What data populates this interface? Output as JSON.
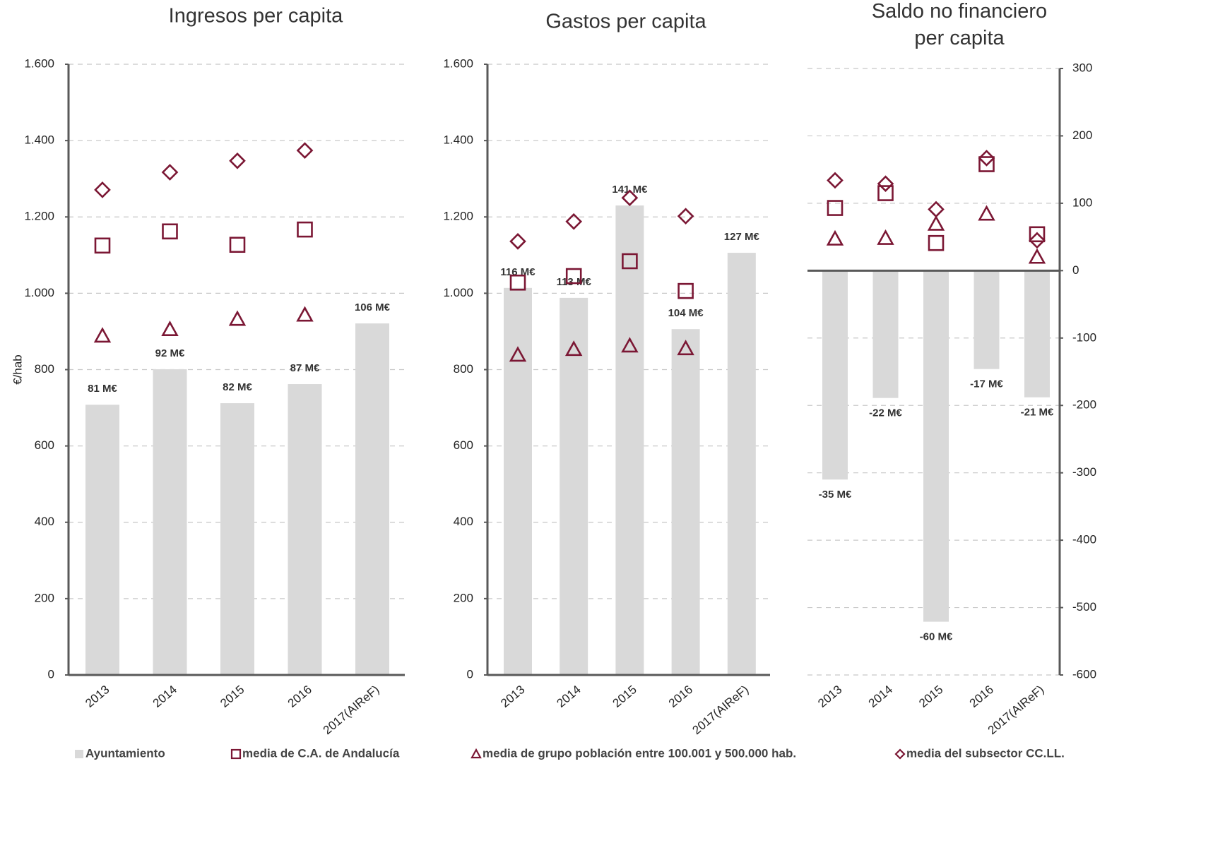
{
  "chart_data": [
    {
      "type": "bar",
      "title": "Ingresos per capita",
      "y_label": "€/hab",
      "yaxis_side": "left",
      "categories": [
        "2013",
        "2014",
        "2015",
        "2016",
        "2017(AIReF)"
      ],
      "ylim": [
        0,
        1600
      ],
      "yticks": [
        0,
        200,
        400,
        600,
        800,
        {
          "value": 1000,
          "label": "1.000"
        },
        {
          "value": 1200,
          "label": "1.200"
        },
        {
          "value": 1400,
          "label": "1.400"
        },
        {
          "value": 1600,
          "label": "1.600"
        }
      ],
      "grid": true,
      "bar_labels": [
        "81 M€",
        "92 M€",
        "82 M€",
        "87 M€",
        "106 M€"
      ],
      "series": [
        {
          "name": "Ayuntamiento",
          "kind": "bar",
          "color": "#d9d9d9",
          "values": [
            708,
            801,
            712,
            762,
            921
          ]
        },
        {
          "name": "media de C.A. de Andalucía",
          "kind": "square",
          "color": "#7b1734",
          "values": [
            1125,
            1162,
            1127,
            1167,
            null
          ]
        },
        {
          "name": "media de grupo población entre 100.001 y 500.000 hab.",
          "kind": "triangle",
          "color": "#7b1734",
          "values": [
            888,
            905,
            932,
            943,
            null
          ]
        },
        {
          "name": "media del subsector CC.LL.",
          "kind": "diamond",
          "color": "#7b1734",
          "values": [
            1271,
            1317,
            1347,
            1374,
            null
          ]
        }
      ]
    },
    {
      "type": "bar",
      "title": "Gastos per capita",
      "yaxis_side": "left",
      "categories": [
        "2013",
        "2014",
        "2015",
        "2016",
        "2017(AIReF)"
      ],
      "ylim": [
        0,
        1600
      ],
      "yticks": [
        0,
        200,
        400,
        600,
        800,
        {
          "value": 1000,
          "label": "1.000"
        },
        {
          "value": 1200,
          "label": "1.200"
        },
        {
          "value": 1400,
          "label": "1.400"
        },
        {
          "value": 1600,
          "label": "1.600"
        }
      ],
      "grid": true,
      "bar_labels": [
        "116 M€",
        "113 M€",
        "141 M€",
        "104 M€",
        "127 M€"
      ],
      "series": [
        {
          "name": "Ayuntamiento",
          "kind": "bar",
          "color": "#d9d9d9",
          "values": [
            1014,
            988,
            1230,
            906,
            1106
          ]
        },
        {
          "name": "media de C.A. de Andalucía",
          "kind": "square",
          "color": "#7b1734",
          "values": [
            1028,
            1045,
            1084,
            1006,
            null
          ]
        },
        {
          "name": "media de grupo población entre 100.001 y 500.000 hab.",
          "kind": "triangle",
          "color": "#7b1734",
          "values": [
            838,
            853,
            862,
            855,
            null
          ]
        },
        {
          "name": "media del subsector CC.LL.",
          "kind": "diamond",
          "color": "#7b1734",
          "values": [
            1136,
            1188,
            1250,
            1202,
            null
          ]
        }
      ]
    },
    {
      "type": "bar",
      "title": "Saldo no financiero per capita",
      "yaxis_side": "right",
      "categories": [
        "2013",
        "2014",
        "2015",
        "2016",
        "2017(AIReF)"
      ],
      "ylim": [
        -600,
        300
      ],
      "yticks": [
        -600,
        -500,
        -400,
        -300,
        -200,
        -100,
        0,
        100,
        200,
        300
      ],
      "grid": true,
      "bar_labels": [
        "-35 M€",
        "-22 M€",
        "-60 M€",
        "-17 M€",
        "-21 M€"
      ],
      "series": [
        {
          "name": "Ayuntamiento",
          "kind": "bar",
          "color": "#d9d9d9",
          "values": [
            -310,
            -189,
            -521,
            -146,
            -188
          ]
        },
        {
          "name": "media de C.A. de Andalucía",
          "kind": "square",
          "color": "#7b1734",
          "values": [
            93,
            115,
            41,
            158,
            54
          ]
        },
        {
          "name": "media de grupo población entre 100.001 y 500.000 hab.",
          "kind": "triangle",
          "color": "#7b1734",
          "values": [
            47,
            48,
            69,
            84,
            20
          ]
        },
        {
          "name": "media del subsector CC.LL.",
          "kind": "diamond",
          "color": "#7b1734",
          "values": [
            134,
            129,
            91,
            167,
            45
          ]
        }
      ]
    }
  ]
}
